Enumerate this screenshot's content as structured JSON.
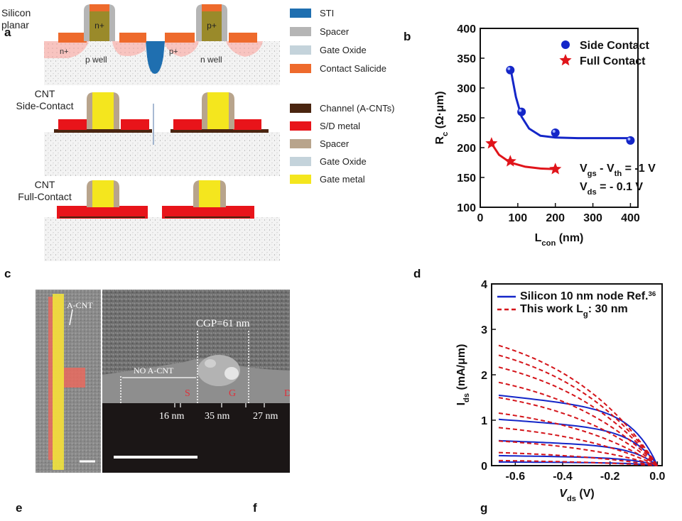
{
  "panel_labels": {
    "a": "a",
    "b": "b",
    "c": "c",
    "d": "d",
    "e": "e",
    "f": "f",
    "g": "g"
  },
  "schematic": {
    "row1_label": "Silicon\nplanar",
    "row2_label": "CNT\nSide-Contact",
    "row3_label": "CNT\nFull-Contact",
    "n_plus_gate": "n+",
    "p_plus_gate": "p+",
    "n_plus_src": "n+",
    "p_plus_src": "p+",
    "p_well": "p well",
    "n_well": "n well"
  },
  "legend1": [
    {
      "label": "STI",
      "color": "#1f6fb0"
    },
    {
      "label": "Spacer",
      "color": "#b5b5b5"
    },
    {
      "label": "Gate Oxide",
      "color": "#c4d3db"
    },
    {
      "label": "Contact Salicide",
      "color": "#ee6a2c"
    }
  ],
  "legend2": [
    {
      "label": "Channel (A-CNTs)",
      "color": "#4a2510"
    },
    {
      "label": "S/D metal",
      "color": "#e8141a"
    },
    {
      "label": "Spacer",
      "color": "#b8a48c"
    },
    {
      "label": "Gate Oxide",
      "color": "#c4d3db"
    },
    {
      "label": "Gate metal",
      "color": "#f4e61e"
    }
  ],
  "chart_data": [
    {
      "type": "scatter",
      "panel": "b",
      "ylabel_main": "R",
      "ylabel_sub": "c",
      "ylabel_unit": " (Ω·μm)",
      "xlabel_main": "L",
      "xlabel_sub": "con",
      "xlabel_unit": " (nm)",
      "xlim": [
        0,
        420
      ],
      "ylim": [
        100,
        400
      ],
      "xticks": [
        "0",
        "100",
        "200",
        "300",
        "400"
      ],
      "yticks": [
        "100",
        "150",
        "200",
        "250",
        "300",
        "350",
        "400"
      ],
      "series": [
        {
          "name": "Side Contact",
          "marker": "circle",
          "color": "#1426c8",
          "x": [
            80,
            110,
            200,
            400
          ],
          "y": [
            330,
            260,
            225,
            212
          ],
          "fit_x": [
            80,
            95,
            110,
            130,
            160,
            200,
            260,
            330,
            400
          ],
          "fit_y": [
            335,
            285,
            252,
            232,
            220,
            217,
            216,
            216,
            216
          ]
        },
        {
          "name": "Full Contact",
          "marker": "star",
          "color": "#e0141a",
          "x": [
            30,
            80,
            200
          ],
          "y": [
            207,
            177,
            164
          ],
          "fit_x": [
            30,
            50,
            80,
            120,
            160,
            200
          ],
          "fit_y": [
            207,
            188,
            175,
            168,
            165,
            164
          ]
        }
      ],
      "annotation": {
        "line1_main": "V",
        "line1_sub1": "gs",
        "line1_mid": " - V",
        "line1_sub2": "th",
        "line1_end": " = -1 V",
        "line2_main": "V",
        "line2_sub": "ds",
        "line2_end": " = - 0.1 V"
      }
    },
    {
      "type": "line",
      "panel": "d",
      "ylabel_main": "I",
      "ylabel_sub": "ds",
      "ylabel_unit": " (mA/μm)",
      "xlabel_main": "V",
      "xlabel_sub": "ds",
      "xlabel_unit": " (V)",
      "xlim": [
        -0.7,
        0.02
      ],
      "ylim": [
        0,
        4
      ],
      "xticks": [
        "-0.6",
        "-0.4",
        "-0.2",
        "0.0"
      ],
      "yticks": [
        "0",
        "1",
        "2",
        "3",
        "4"
      ],
      "legend": [
        {
          "name_main": "Silicon 10 nm node Ref.",
          "name_sup": "36",
          "style": "solid",
          "color": "#1426c8"
        },
        {
          "name_main": "This work L",
          "name_sub": "g",
          "name_end": ": 30 nm",
          "style": "dashed",
          "color": "#d4141a"
        }
      ],
      "series": [
        {
          "style": "solid",
          "color": "#1426c8",
          "sat": 1.55
        },
        {
          "style": "solid",
          "color": "#1426c8",
          "sat": 1.02
        },
        {
          "style": "solid",
          "color": "#1426c8",
          "sat": 0.55
        },
        {
          "style": "solid",
          "color": "#1426c8",
          "sat": 0.22
        },
        {
          "style": "solid",
          "color": "#1426c8",
          "sat": 0.08
        },
        {
          "style": "dashed",
          "color": "#d4141a",
          "sat": 3.32
        },
        {
          "style": "dashed",
          "color": "#d4141a",
          "sat": 3.05
        },
        {
          "style": "dashed",
          "color": "#d4141a",
          "sat": 2.72
        },
        {
          "style": "dashed",
          "color": "#d4141a",
          "sat": 2.3
        },
        {
          "style": "dashed",
          "color": "#d4141a",
          "sat": 1.88
        },
        {
          "style": "dashed",
          "color": "#d4141a",
          "sat": 1.45
        },
        {
          "style": "dashed",
          "color": "#d4141a",
          "sat": 1.05
        },
        {
          "style": "dashed",
          "color": "#d4141a",
          "sat": 0.68
        },
        {
          "style": "dashed",
          "color": "#d4141a",
          "sat": 0.36
        },
        {
          "style": "dashed",
          "color": "#d4141a",
          "sat": 0.14
        }
      ]
    }
  ],
  "sem": {
    "acnt_label": "A-CNT",
    "cgp_label": "CGP=61 nm",
    "no_acnt_label": "NO A-CNT",
    "s_label": "S",
    "g_label": "G",
    "d_label": "D",
    "dim1": "16 nm",
    "dim2": "35 nm",
    "dim3": "27 nm"
  }
}
